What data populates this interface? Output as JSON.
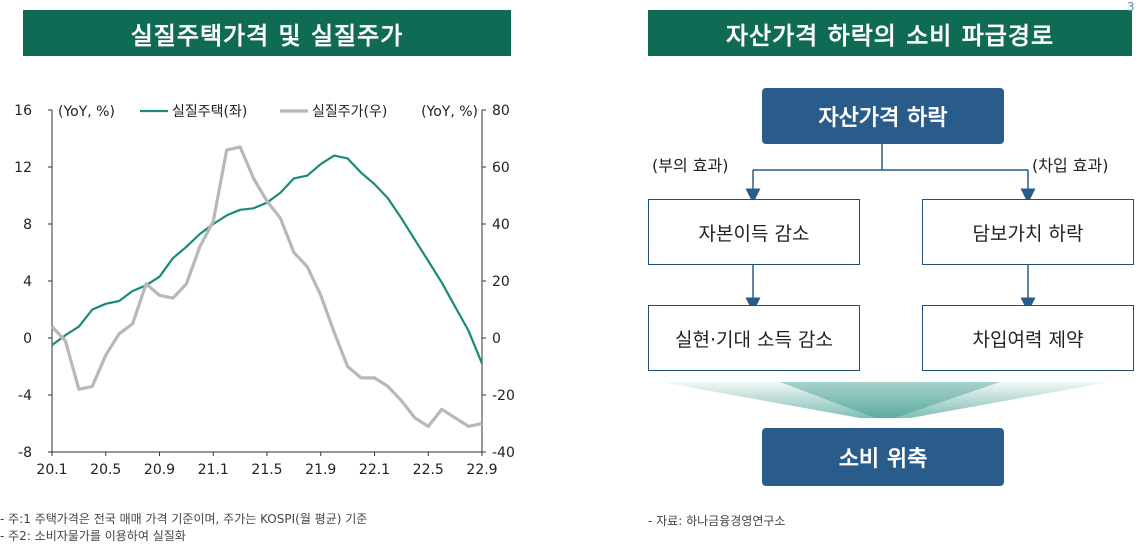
{
  "left_panel": {
    "title": "실질주택가격 및 실질주가",
    "notes": [
      "- 주:1 주택가격은 전국 매매 가격 기준이며, 주가는 KOSPI(월 평균) 기준",
      "- 주2: 소비자물가를 이용하여 실질화"
    ]
  },
  "right_panel": {
    "title": "자산가격 하락의 소비 파급경로",
    "source": "- 자료: 하나금융경영연구소",
    "nodes": {
      "top": "자산가격 하락",
      "left_mid": "자본이득 감소",
      "right_mid": "담보가치 하락",
      "left_bottom": "실현·기대 소득 감소",
      "right_bottom": "차입여력 제약",
      "final": "소비 위축"
    },
    "edge_labels": {
      "left": "(부의 효과)",
      "right": "(차입 효과)"
    }
  },
  "colors": {
    "banner": "#0f6b54",
    "housing_line": "#1a8a7a",
    "stock_line": "#b8b8b8",
    "box_dark": "#2a5c8b",
    "box_border": "#1f4e79"
  },
  "chart_data": {
    "type": "line",
    "title": "실질주택가격 및 실질주가",
    "left_axis_unit": "(YoY, %)",
    "right_axis_unit": "(YoY, %)",
    "ylim_left": [
      -8,
      16
    ],
    "ylim_right": [
      -40,
      80
    ],
    "yticks_left": [
      "16",
      "12",
      "8",
      "4",
      "0",
      "-4",
      "-8"
    ],
    "yticks_right": [
      "80",
      "60",
      "40",
      "20",
      "0",
      "-20",
      "-40"
    ],
    "x_ticks": [
      "20.1",
      "20.5",
      "20.9",
      "21.1",
      "21.5",
      "21.9",
      "22.1",
      "22.5",
      "22.9"
    ],
    "months": 33,
    "series": [
      {
        "name": "실질주택(좌)",
        "axis": "left",
        "values": [
          -0.5,
          0.2,
          0.8,
          2.0,
          2.4,
          2.6,
          3.3,
          3.7,
          4.3,
          5.6,
          6.4,
          7.3,
          8.0,
          8.6,
          9.0,
          9.1,
          9.5,
          10.2,
          11.2,
          11.4,
          12.2,
          12.8,
          12.6,
          11.6,
          10.8,
          9.8,
          8.4,
          6.9,
          5.4,
          3.9,
          2.2,
          0.5,
          -1.8
        ]
      },
      {
        "name": "실질주가(우)",
        "axis": "right",
        "values": [
          4.0,
          -1.0,
          -18.0,
          -17.0,
          -6.0,
          1.5,
          5.0,
          19.0,
          15.0,
          14.0,
          19.0,
          32.0,
          41.0,
          66.0,
          67.0,
          56.0,
          48.0,
          42.0,
          30.0,
          25.0,
          15.0,
          2.0,
          -10.0,
          -14.0,
          -14.0,
          -17.0,
          -22.0,
          -28.0,
          -31.0,
          -25.0,
          -28.0,
          -31.0,
          -30.0
        ]
      }
    ]
  }
}
